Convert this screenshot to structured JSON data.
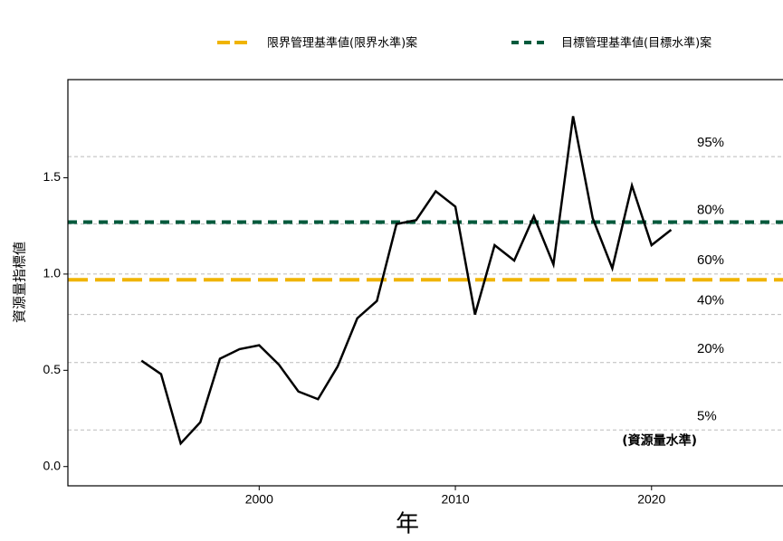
{
  "chart_data": {
    "type": "line",
    "x_label": "年",
    "y_label": "資源量指標値",
    "x": [
      1994,
      1995,
      1996,
      1997,
      1998,
      1999,
      2000,
      2001,
      2002,
      2003,
      2004,
      2005,
      2006,
      2007,
      2008,
      2009,
      2010,
      2011,
      2012,
      2013,
      2014,
      2015,
      2016,
      2017,
      2018,
      2019,
      2020,
      2021
    ],
    "series": [
      {
        "color": "#000000",
        "values": [
          0.55,
          0.48,
          0.12,
          0.23,
          0.56,
          0.61,
          0.63,
          0.53,
          0.39,
          0.35,
          0.52,
          0.77,
          0.86,
          1.26,
          1.28,
          1.43,
          1.35,
          0.79,
          1.15,
          1.07,
          1.3,
          1.05,
          1.82,
          1.29,
          1.03,
          1.46,
          1.15,
          1.23
        ]
      }
    ],
    "reference_lines": [
      {
        "name": "限界管理基準値(限界水準)案",
        "color": "#f0b400",
        "value": 0.97
      },
      {
        "name": "目標管理基準値(目標水準)案",
        "color": "#005a3c",
        "value": 1.27
      }
    ],
    "levels": [
      {
        "label": "95%",
        "value": 1.61
      },
      {
        "label": "80%",
        "value": 1.26
      },
      {
        "label": "60%",
        "value": 1.0
      },
      {
        "label": "40%",
        "value": 0.79
      },
      {
        "label": "20%",
        "value": 0.54
      },
      {
        "label": "5%",
        "value": 0.19
      }
    ],
    "level_annotation": "(資源量水準)",
    "xlim": [
      1990.25,
      2026.7
    ],
    "ylim": [
      -0.1,
      2.01
    ],
    "xticks": [
      2000,
      2010,
      2020
    ],
    "yticks": [
      {
        "value": 0,
        "label": "0.0"
      },
      {
        "value": 0.5,
        "label": "0.5"
      },
      {
        "value": 1,
        "label": "1.0"
      },
      {
        "value": 1.5,
        "label": "1.5"
      }
    ]
  }
}
